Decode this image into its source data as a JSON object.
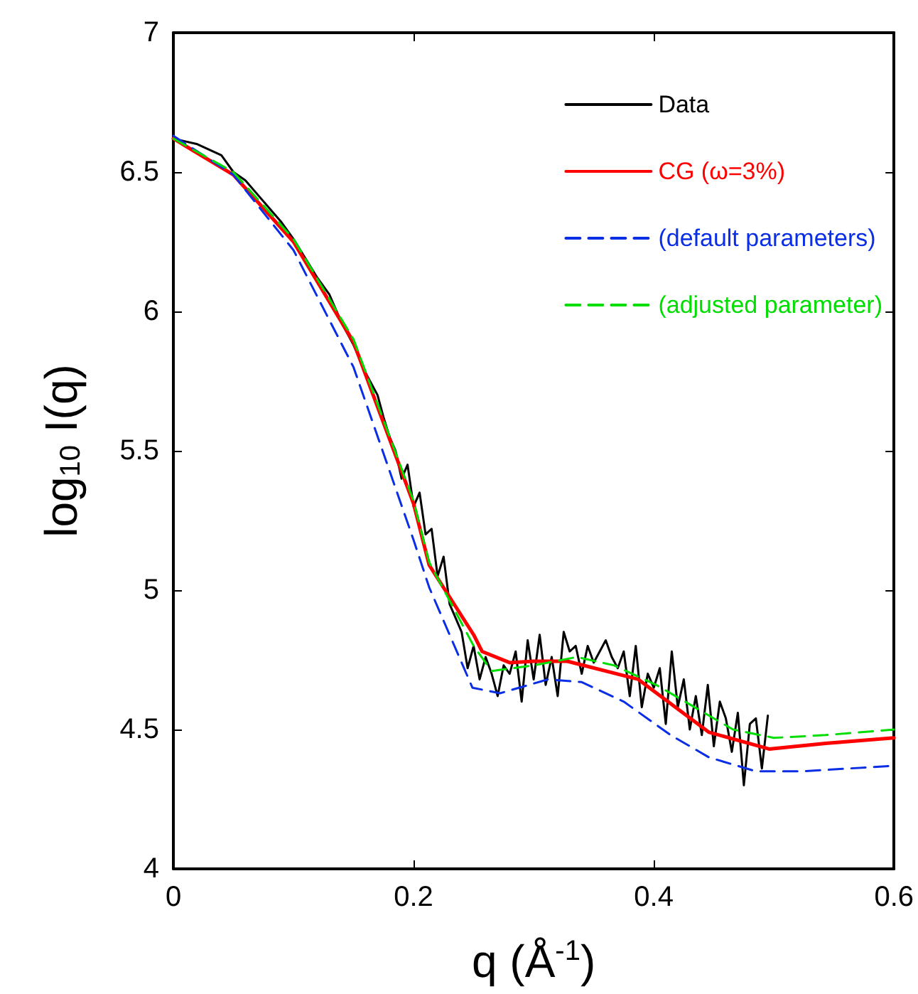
{
  "chart_data": {
    "type": "line",
    "xlabel": "q (Å$^{-1}$)",
    "ylabel": "log$_{10}$ I(q)",
    "xlim": [
      0,
      0.6
    ],
    "xticks": [
      0,
      0.2,
      0.4,
      0.6
    ],
    "ylim": [
      4,
      7
    ],
    "yticks": [
      4,
      4.5,
      5,
      5.5,
      6,
      6.5,
      7
    ],
    "grid": false,
    "legend": "top right",
    "marker": "none",
    "series": [
      {
        "name": "Data",
        "color": "#000000",
        "line_style": "solid",
        "x": [
          0,
          0.01,
          0.02,
          0.03,
          0.04,
          0.05,
          0.06,
          0.07,
          0.08,
          0.09,
          0.1,
          0.11,
          0.12,
          0.13,
          0.14,
          0.15,
          0.16,
          0.17,
          0.175,
          0.18,
          0.185,
          0.19,
          0.195,
          0.2,
          0.205,
          0.21,
          0.215,
          0.22,
          0.225,
          0.23,
          0.235,
          0.24,
          0.245,
          0.25,
          0.255,
          0.26,
          0.265,
          0.27,
          0.275,
          0.28,
          0.285,
          0.29,
          0.295,
          0.3,
          0.305,
          0.31,
          0.315,
          0.32,
          0.325,
          0.33,
          0.335,
          0.34,
          0.345,
          0.35,
          0.355,
          0.36,
          0.365,
          0.37,
          0.375,
          0.38,
          0.385,
          0.39,
          0.395,
          0.4,
          0.405,
          0.41,
          0.415,
          0.42,
          0.425,
          0.43,
          0.435,
          0.44,
          0.445,
          0.45,
          0.455,
          0.46,
          0.465,
          0.47,
          0.475,
          0.48,
          0.485,
          0.49,
          0.495
        ],
        "values": [
          6.62,
          6.61,
          6.6,
          6.58,
          6.56,
          6.5,
          6.47,
          6.42,
          6.37,
          6.32,
          6.26,
          6.19,
          6.12,
          6.06,
          5.96,
          5.88,
          5.78,
          5.7,
          5.62,
          5.55,
          5.5,
          5.4,
          5.45,
          5.3,
          5.35,
          5.2,
          5.22,
          5.05,
          5.12,
          4.95,
          4.9,
          4.85,
          4.72,
          4.8,
          4.68,
          4.76,
          4.7,
          4.62,
          4.73,
          4.7,
          4.78,
          4.6,
          4.82,
          4.68,
          4.84,
          4.66,
          4.76,
          4.62,
          4.85,
          4.78,
          4.8,
          4.7,
          4.8,
          4.74,
          4.78,
          4.82,
          4.76,
          4.72,
          4.78,
          4.62,
          4.8,
          4.58,
          4.7,
          4.65,
          4.72,
          4.52,
          4.78,
          4.58,
          4.68,
          4.5,
          4.62,
          4.48,
          4.66,
          4.44,
          4.6,
          4.54,
          4.42,
          4.56,
          4.3,
          4.52,
          4.54,
          4.36,
          4.55
        ]
      },
      {
        "name": "CG (ω=3%)",
        "color": "#ff0000",
        "line_style": "solid",
        "x": [
          0,
          0.05,
          0.1,
          0.15,
          0.2,
          0.213,
          0.25,
          0.257,
          0.28,
          0.3,
          0.328,
          0.387,
          0.446,
          0.496,
          0.543,
          0.6
        ],
        "values": [
          6.62,
          6.49,
          6.25,
          5.89,
          5.31,
          5.09,
          4.84,
          4.78,
          4.74,
          4.745,
          4.745,
          4.68,
          4.49,
          4.43,
          4.45,
          4.47
        ]
      },
      {
        "name": "(default parameters)",
        "color": "#0a2ee6",
        "line_style": "dashed",
        "x": [
          0,
          0.05,
          0.1,
          0.15,
          0.2,
          0.213,
          0.249,
          0.272,
          0.312,
          0.34,
          0.375,
          0.414,
          0.446,
          0.485,
          0.524,
          0.6
        ],
        "values": [
          6.63,
          6.49,
          6.22,
          5.8,
          5.18,
          5.01,
          4.65,
          4.63,
          4.68,
          4.67,
          4.6,
          4.48,
          4.4,
          4.35,
          4.35,
          4.37
        ]
      },
      {
        "name": "(adjusted parameter)",
        "color": "#00dd00",
        "line_style": "dashed",
        "x": [
          0,
          0.05,
          0.1,
          0.15,
          0.2,
          0.213,
          0.25,
          0.265,
          0.3,
          0.336,
          0.367,
          0.402,
          0.434,
          0.466,
          0.5,
          0.543,
          0.6
        ],
        "values": [
          6.62,
          6.5,
          6.26,
          5.9,
          5.32,
          5.1,
          4.8,
          4.71,
          4.73,
          4.76,
          4.73,
          4.66,
          4.58,
          4.5,
          4.47,
          4.48,
          4.5
        ]
      }
    ]
  }
}
